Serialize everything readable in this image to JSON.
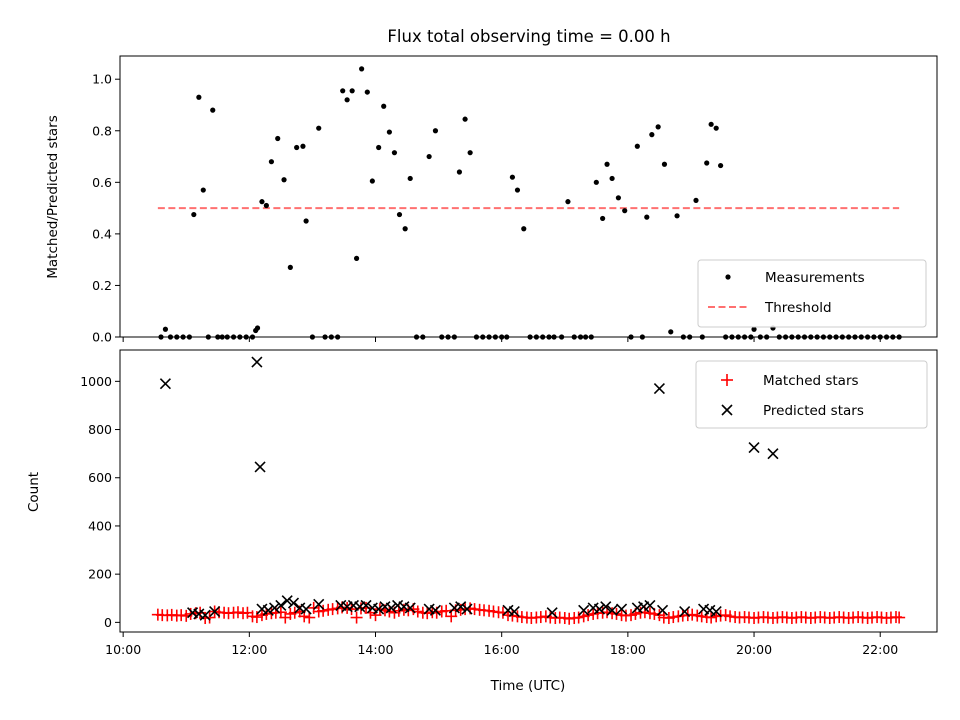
{
  "chart_data": [
    {
      "type": "scatter",
      "title": "Flux total observing time = 0.00 h",
      "xlabel": "",
      "ylabel": "Matched/Predicted stars",
      "xlim": [
        9.95,
        22.9
      ],
      "ylim": [
        0.0,
        1.09
      ],
      "yticks": [
        0.0,
        0.2,
        0.4,
        0.6,
        0.8,
        1.0
      ],
      "ytick_labels": [
        "0.0",
        "0.2",
        "0.4",
        "0.6",
        "0.8",
        "1.0"
      ],
      "legend_position": "lower-right",
      "series": [
        {
          "name": "Measurements",
          "kind": "points",
          "color": "#000000",
          "x": [
            10.6,
            10.67,
            10.75,
            10.85,
            10.95,
            11.05,
            11.12,
            11.2,
            11.27,
            11.35,
            11.42,
            11.5,
            11.57,
            11.65,
            11.75,
            11.85,
            11.95,
            12.05,
            12.1,
            12.13,
            12.2,
            12.27,
            12.35,
            12.45,
            12.55,
            12.65,
            12.75,
            12.85,
            12.9,
            13.0,
            13.1,
            13.2,
            13.3,
            13.4,
            13.48,
            13.55,
            13.63,
            13.7,
            13.78,
            13.87,
            13.95,
            14.05,
            14.13,
            14.22,
            14.3,
            14.38,
            14.47,
            14.55,
            14.65,
            14.75,
            14.85,
            14.95,
            15.05,
            15.15,
            15.25,
            15.33,
            15.42,
            15.5,
            15.6,
            15.7,
            15.8,
            15.9,
            16.0,
            16.08,
            16.17,
            16.25,
            16.35,
            16.45,
            16.55,
            16.65,
            16.75,
            16.83,
            16.95,
            17.05,
            17.15,
            17.25,
            17.33,
            17.42,
            17.5,
            17.6,
            17.67,
            17.75,
            17.85,
            17.95,
            18.05,
            18.15,
            18.23,
            18.3,
            18.38,
            18.48,
            18.58,
            18.68,
            18.78,
            18.88,
            18.98,
            19.08,
            19.18,
            19.25,
            19.32,
            19.4,
            19.47,
            19.55,
            19.65,
            19.75,
            19.85,
            19.95,
            20.0,
            20.1,
            20.2,
            20.3,
            20.4,
            20.5,
            20.6,
            20.7,
            20.8,
            20.9,
            21.0,
            21.1,
            21.2,
            21.3,
            21.4,
            21.5,
            21.6,
            21.7,
            21.8,
            21.9,
            22.0,
            22.1,
            22.2,
            22.3
          ],
          "y": [
            0.0,
            0.03,
            0.0,
            0.0,
            0.0,
            0.0,
            0.475,
            0.93,
            0.57,
            0.0,
            0.88,
            0.0,
            0.0,
            0.0,
            0.0,
            0.0,
            0.0,
            0.0,
            0.025,
            0.035,
            0.525,
            0.51,
            0.68,
            0.77,
            0.61,
            0.27,
            0.735,
            0.74,
            0.45,
            0.0,
            0.81,
            0.0,
            0.0,
            0.0,
            0.955,
            0.92,
            0.955,
            0.305,
            1.04,
            0.95,
            0.605,
            0.735,
            0.895,
            0.795,
            0.715,
            0.475,
            0.42,
            0.615,
            0.0,
            0.0,
            0.7,
            0.8,
            0.0,
            0.0,
            0.0,
            0.64,
            0.845,
            0.715,
            0.0,
            0.0,
            0.0,
            0.0,
            0.0,
            0.0,
            0.62,
            0.57,
            0.42,
            0.0,
            0.0,
            0.0,
            0.0,
            0.0,
            0.0,
            0.525,
            0.0,
            0.0,
            0.0,
            0.0,
            0.6,
            0.46,
            0.67,
            0.615,
            0.54,
            0.49,
            0.0,
            0.74,
            0.0,
            0.465,
            0.785,
            0.815,
            0.67,
            0.02,
            0.47,
            0.0,
            0.0,
            0.53,
            0.0,
            0.675,
            0.825,
            0.81,
            0.665,
            0.0,
            0.0,
            0.0,
            0.0,
            0.0,
            0.03,
            0.0,
            0.0,
            0.035,
            0.0,
            0.0,
            0.0,
            0.0,
            0.0,
            0.0,
            0.0,
            0.0,
            0.0,
            0.0,
            0.0,
            0.0,
            0.0,
            0.0,
            0.0,
            0.0,
            0.0,
            0.0,
            0.0,
            0.0
          ]
        },
        {
          "name": "Threshold",
          "kind": "dashed-line",
          "color": "#ff7070",
          "x": [
            10.55,
            22.3
          ],
          "y": [
            0.5,
            0.5
          ]
        }
      ]
    },
    {
      "type": "scatter",
      "title": "",
      "xlabel": "Time (UTC)",
      "ylabel": "Count",
      "xlim": [
        9.95,
        22.9
      ],
      "ylim": [
        -40,
        1130
      ],
      "xticks": [
        10,
        12,
        14,
        16,
        18,
        20,
        22
      ],
      "xtick_labels": [
        "10:00",
        "12:00",
        "14:00",
        "16:00",
        "18:00",
        "20:00",
        "22:00"
      ],
      "yticks": [
        0,
        200,
        400,
        600,
        800,
        1000
      ],
      "ytick_labels": [
        "0",
        "200",
        "400",
        "600",
        "800",
        "1000"
      ],
      "legend_position": "upper-right",
      "series": [
        {
          "name": "Matched stars",
          "kind": "plus",
          "color": "#ff0000",
          "x": [
            10.55,
            10.62,
            10.7,
            10.77,
            10.85,
            10.92,
            11.0,
            11.07,
            11.15,
            11.22,
            11.3,
            11.37,
            11.45,
            11.52,
            11.6,
            11.67,
            11.75,
            11.82,
            11.9,
            11.97,
            12.05,
            12.12,
            12.2,
            12.27,
            12.35,
            12.42,
            12.5,
            12.57,
            12.65,
            12.72,
            12.8,
            12.87,
            12.95,
            13.02,
            13.1,
            13.17,
            13.25,
            13.32,
            13.4,
            13.47,
            13.55,
            13.62,
            13.7,
            13.77,
            13.85,
            13.92,
            14.0,
            14.07,
            14.15,
            14.22,
            14.3,
            14.37,
            14.45,
            14.52,
            14.6,
            14.67,
            14.75,
            14.82,
            14.9,
            14.97,
            15.05,
            15.12,
            15.2,
            15.27,
            15.35,
            15.42,
            15.5,
            15.57,
            15.65,
            15.72,
            15.8,
            15.87,
            15.95,
            16.02,
            16.1,
            16.17,
            16.25,
            16.32,
            16.4,
            16.47,
            16.55,
            16.62,
            16.7,
            16.77,
            16.85,
            16.92,
            17.0,
            17.07,
            17.15,
            17.22,
            17.3,
            17.37,
            17.45,
            17.52,
            17.6,
            17.67,
            17.75,
            17.82,
            17.9,
            17.97,
            18.05,
            18.12,
            18.2,
            18.27,
            18.35,
            18.42,
            18.5,
            18.57,
            18.65,
            18.72,
            18.8,
            18.87,
            18.95,
            19.02,
            19.1,
            19.17,
            19.25,
            19.32,
            19.4,
            19.47,
            19.55,
            19.62,
            19.7,
            19.77,
            19.85,
            19.92,
            20.0,
            20.07,
            20.15,
            20.22,
            20.3,
            20.37,
            20.45,
            20.52,
            20.6,
            20.67,
            20.75,
            20.82,
            20.9,
            20.97,
            21.05,
            21.12,
            21.2,
            21.27,
            21.35,
            21.42,
            21.5,
            21.57,
            21.65,
            21.72,
            21.8,
            21.87,
            21.95,
            22.02,
            22.1,
            22.17,
            22.25,
            22.3
          ],
          "y": [
            32,
            30,
            29,
            31,
            28,
            30,
            27,
            35,
            38,
            40,
            18,
            20,
            45,
            42,
            40,
            38,
            40,
            42,
            38,
            40,
            25,
            22,
            30,
            35,
            38,
            40,
            42,
            20,
            35,
            40,
            45,
            25,
            20,
            60,
            45,
            48,
            52,
            55,
            58,
            62,
            60,
            55,
            20,
            58,
            60,
            40,
            30,
            55,
            50,
            45,
            40,
            48,
            52,
            50,
            55,
            45,
            40,
            38,
            42,
            40,
            45,
            48,
            25,
            50,
            52,
            55,
            58,
            55,
            52,
            50,
            48,
            45,
            42,
            40,
            30,
            28,
            25,
            22,
            20,
            18,
            20,
            22,
            25,
            20,
            18,
            20,
            18,
            15,
            18,
            20,
            25,
            30,
            35,
            38,
            40,
            42,
            38,
            35,
            30,
            28,
            30,
            35,
            40,
            42,
            38,
            35,
            30,
            20,
            18,
            22,
            25,
            28,
            30,
            32,
            28,
            25,
            22,
            20,
            25,
            28,
            30,
            25,
            22,
            20,
            22,
            20,
            18,
            20,
            22,
            20,
            18,
            20,
            22,
            20,
            18,
            20,
            22,
            20,
            18,
            20,
            22,
            20,
            18,
            20,
            22,
            20,
            18,
            20,
            22,
            20,
            18,
            20,
            22,
            20,
            18,
            20,
            22,
            20
          ]
        },
        {
          "name": "Predicted stars",
          "kind": "x",
          "color": "#000000",
          "x": [
            10.67,
            11.1,
            11.2,
            11.3,
            11.45,
            12.12,
            12.17,
            12.2,
            12.3,
            12.4,
            12.5,
            12.6,
            12.7,
            12.8,
            12.9,
            13.1,
            13.45,
            13.55,
            13.65,
            13.75,
            13.85,
            13.95,
            14.05,
            14.15,
            14.25,
            14.35,
            14.45,
            14.55,
            14.85,
            14.95,
            15.25,
            15.35,
            15.45,
            16.1,
            16.2,
            16.8,
            17.3,
            17.45,
            17.55,
            17.65,
            17.75,
            17.9,
            18.15,
            18.25,
            18.35,
            18.5,
            18.55,
            18.9,
            19.2,
            19.3,
            19.4,
            20.0,
            20.3
          ],
          "y": [
            990,
            40,
            35,
            30,
            45,
            1080,
            645,
            55,
            50,
            60,
            70,
            90,
            80,
            60,
            55,
            75,
            70,
            65,
            70,
            65,
            70,
            60,
            55,
            65,
            60,
            70,
            65,
            60,
            55,
            50,
            60,
            65,
            55,
            50,
            45,
            40,
            50,
            60,
            55,
            65,
            50,
            55,
            60,
            65,
            70,
            970,
            50,
            45,
            55,
            50,
            45,
            725,
            700
          ]
        }
      ]
    }
  ]
}
